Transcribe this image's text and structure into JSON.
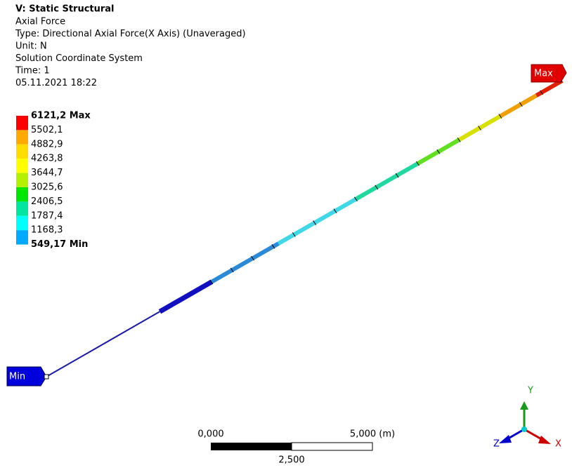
{
  "header": {
    "title": "V: Static Structural",
    "lines": [
      "Axial Force",
      "Type: Directional Axial Force(X Axis) (Unaveraged)",
      "Unit: N",
      "Solution Coordinate System",
      "Time: 1",
      "05.11.2021 18:22"
    ]
  },
  "legend": {
    "labels": [
      "6121,2 Max",
      "5502,1",
      "4882,9",
      "4263,8",
      "3644,7",
      "3025,6",
      "2406,5",
      "1787,4",
      "1168,3",
      "549,17 Min"
    ],
    "colors": [
      "#ff0000",
      "#ffaa00",
      "#ffdd00",
      "#ffff00",
      "#b4f000",
      "#00e600",
      "#00e6a0",
      "#00ffff",
      "#00aaff",
      "#0000ff"
    ]
  },
  "probes": {
    "max": "Max",
    "min": "Min"
  },
  "scale_bar": {
    "left": "0,000",
    "right": "5,000 (m)",
    "middle": "2,500"
  },
  "triad": {
    "x": "X",
    "y": "Y",
    "z": "Z"
  }
}
